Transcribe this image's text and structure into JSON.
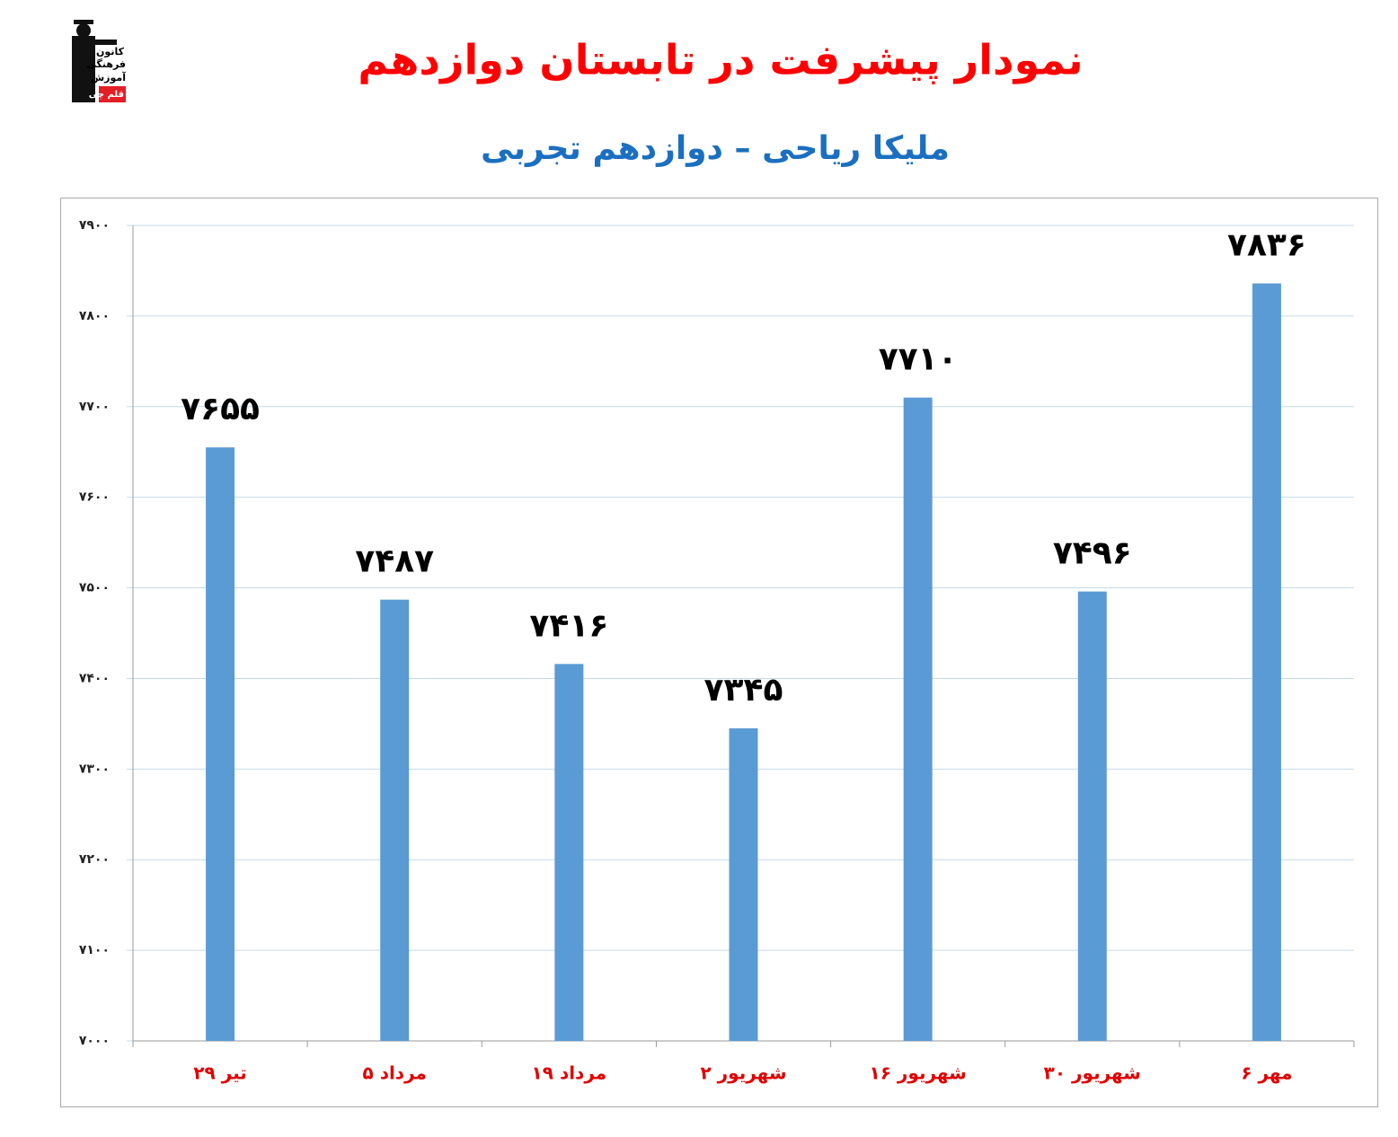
{
  "logo": [
    "کانون",
    "فرهنگی",
    "آموزش",
    "قلم چی"
  ],
  "chart_data": {
    "type": "bar",
    "title": "نمودار پیشرفت در تابستان دوازدهم",
    "subtitle": "ملیکا ریاحی – دوازدهم تجربی",
    "categories": [
      "۲۹ تیر",
      "۵ مرداد",
      "۱۹ مرداد",
      "۲ شهریور",
      "۱۶ شهریور",
      "۳۰ شهریور",
      "۶ مهر"
    ],
    "values": [
      7655,
      7487,
      7416,
      7345,
      7710,
      7496,
      7836
    ],
    "value_labels": [
      "۷۶۵۵",
      "۷۴۸۷",
      "۷۴۱۶",
      "۷۳۴۵",
      "۷۷۱۰",
      "۷۴۹۶",
      "۷۸۳۶"
    ],
    "color": "#5b9bd5",
    "ylim": [
      7000,
      7900
    ],
    "yticks": [
      {
        "value": 7000,
        "label": "۷۰۰۰"
      },
      {
        "value": 7100,
        "label": "۷۱۰۰"
      },
      {
        "value": 7200,
        "label": "۷۲۰۰"
      },
      {
        "value": 7300,
        "label": "۷۳۰۰"
      },
      {
        "value": 7400,
        "label": "۷۴۰۰"
      },
      {
        "value": 7500,
        "label": "۷۵۰۰"
      },
      {
        "value": 7600,
        "label": "۷۶۰۰"
      },
      {
        "value": 7700,
        "label": "۷۷۰۰"
      },
      {
        "value": 7800,
        "label": "۷۸۰۰"
      },
      {
        "value": 7900,
        "label": "۷۹۰۰"
      }
    ],
    "grid": true
  }
}
